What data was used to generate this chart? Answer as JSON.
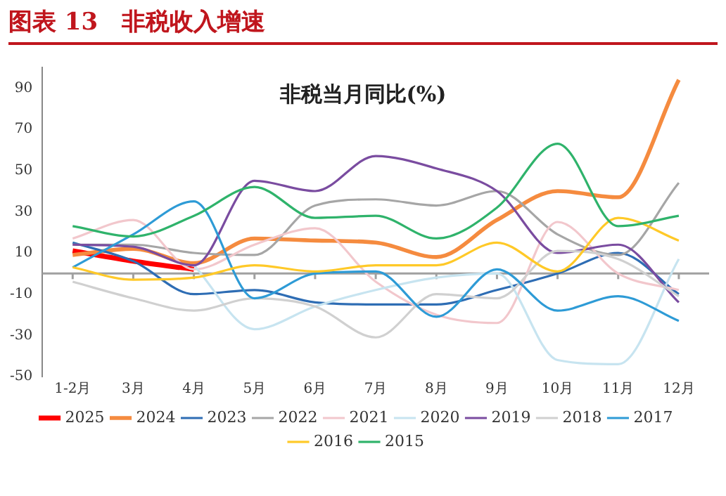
{
  "chart_data": {
    "type": "line",
    "title": "图表 13　非税收入增速",
    "subtitle": "非税当月同比(%)",
    "categories": [
      "1-2月",
      "3月",
      "4月",
      "5月",
      "6月",
      "7月",
      "8月",
      "9月",
      "10月",
      "11月",
      "12月"
    ],
    "ylim": [
      -50,
      100
    ],
    "yticks": [
      -50,
      -30,
      -10,
      10,
      30,
      50,
      70,
      90
    ],
    "grid": false,
    "legend": "bottom",
    "marker": "none",
    "line_style": "solid",
    "ref_lines": [
      {
        "axis": "y",
        "value": 0,
        "color": "#a0a0a0"
      }
    ],
    "series": [
      {
        "name": "2025",
        "color": "#ff0000",
        "values": [
          11,
          6,
          2,
          null,
          null,
          null,
          null,
          null,
          null,
          null,
          null
        ]
      },
      {
        "name": "2024",
        "color": "#f58b3f",
        "values": [
          9,
          12,
          5,
          17,
          16,
          15,
          8,
          26,
          40,
          37,
          94
        ]
      },
      {
        "name": "2023",
        "color": "#2e6db4",
        "values": [
          15,
          6,
          -10,
          -8,
          -14,
          -15,
          -15,
          -8,
          0,
          10,
          -10
        ]
      },
      {
        "name": "2022",
        "color": "#a6a6a6",
        "values": [
          14,
          14,
          10,
          9,
          33,
          36,
          33,
          40,
          19,
          9,
          44
        ]
      },
      {
        "name": "2021",
        "color": "#f2c7cc",
        "values": [
          17,
          26,
          2,
          14,
          22,
          -4,
          -20,
          -24,
          25,
          0,
          -8
        ]
      },
      {
        "name": "2020",
        "color": "#c7e4f0",
        "values": [
          null,
          null,
          4,
          -27,
          -16,
          -8,
          -2,
          0,
          -42,
          -44,
          7
        ]
      },
      {
        "name": "2019",
        "color": "#7a4ca0",
        "values": [
          14,
          13,
          4,
          45,
          40,
          57,
          51,
          40,
          10,
          14,
          -14
        ]
      },
      {
        "name": "2018",
        "color": "#d0d0d0",
        "values": [
          -4,
          -12,
          -18,
          -12,
          -16,
          -31,
          -10,
          -12,
          11,
          7,
          -11
        ]
      },
      {
        "name": "2017",
        "color": "#2e9bd6",
        "values": [
          3,
          19,
          35,
          -12,
          0,
          1,
          -21,
          2,
          -18,
          -11,
          -23
        ]
      },
      {
        "name": "2016",
        "color": "#ffc928",
        "values": [
          3,
          -3,
          -2,
          4,
          1,
          4,
          4,
          15,
          1,
          27,
          16
        ]
      },
      {
        "name": "2015",
        "color": "#2fb36b",
        "values": [
          23,
          18,
          28,
          42,
          27,
          28,
          17,
          32,
          63,
          23,
          28
        ]
      }
    ]
  }
}
